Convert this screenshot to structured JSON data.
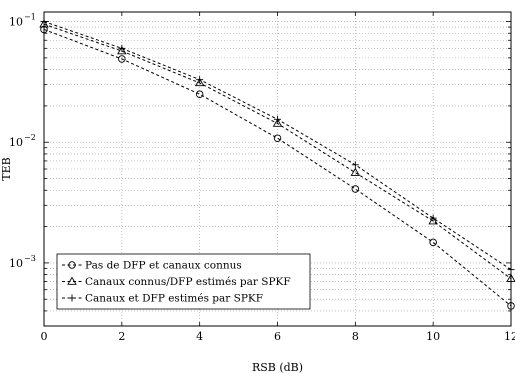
{
  "chart_data": {
    "type": "line",
    "title": "",
    "xlabel": "RSB (dB)",
    "ylabel": "TEB",
    "xlim": [
      0,
      12
    ],
    "ylim": [
      0.0003,
      0.12
    ],
    "yscale": "log",
    "grid": true,
    "legend_position": "bottom-left",
    "x_ticks": [
      {
        "value": 0,
        "label": "0"
      },
      {
        "value": 2,
        "label": "2"
      },
      {
        "value": 4,
        "label": "4"
      },
      {
        "value": 6,
        "label": "6"
      },
      {
        "value": 8,
        "label": "8"
      },
      {
        "value": 10,
        "label": "10"
      },
      {
        "value": 12,
        "label": "12"
      }
    ],
    "y_ticks": [
      {
        "value": 0.001,
        "base": "10",
        "exp": "−3"
      },
      {
        "value": 0.01,
        "base": "10",
        "exp": "−2"
      },
      {
        "value": 0.1,
        "base": "10",
        "exp": "−1"
      }
    ],
    "x": [
      0,
      2,
      4,
      6,
      8,
      10,
      12
    ],
    "series": [
      {
        "name": "Pas de DFP et canaux connus",
        "marker": "circle",
        "color": "#000000",
        "values": [
          0.086,
          0.049,
          0.025,
          0.0108,
          0.0041,
          0.00148,
          0.00044
        ]
      },
      {
        "name": "Canaux connus/DFP estimés par SPKF",
        "marker": "triangle",
        "color": "#000000",
        "values": [
          0.095,
          0.057,
          0.031,
          0.0143,
          0.0056,
          0.00222,
          0.00074
        ]
      },
      {
        "name": "Canaux et DFP estimés par SPKF",
        "marker": "plus",
        "color": "#000000",
        "values": [
          0.1,
          0.06,
          0.033,
          0.0155,
          0.0065,
          0.00235,
          0.00088
        ]
      }
    ]
  }
}
